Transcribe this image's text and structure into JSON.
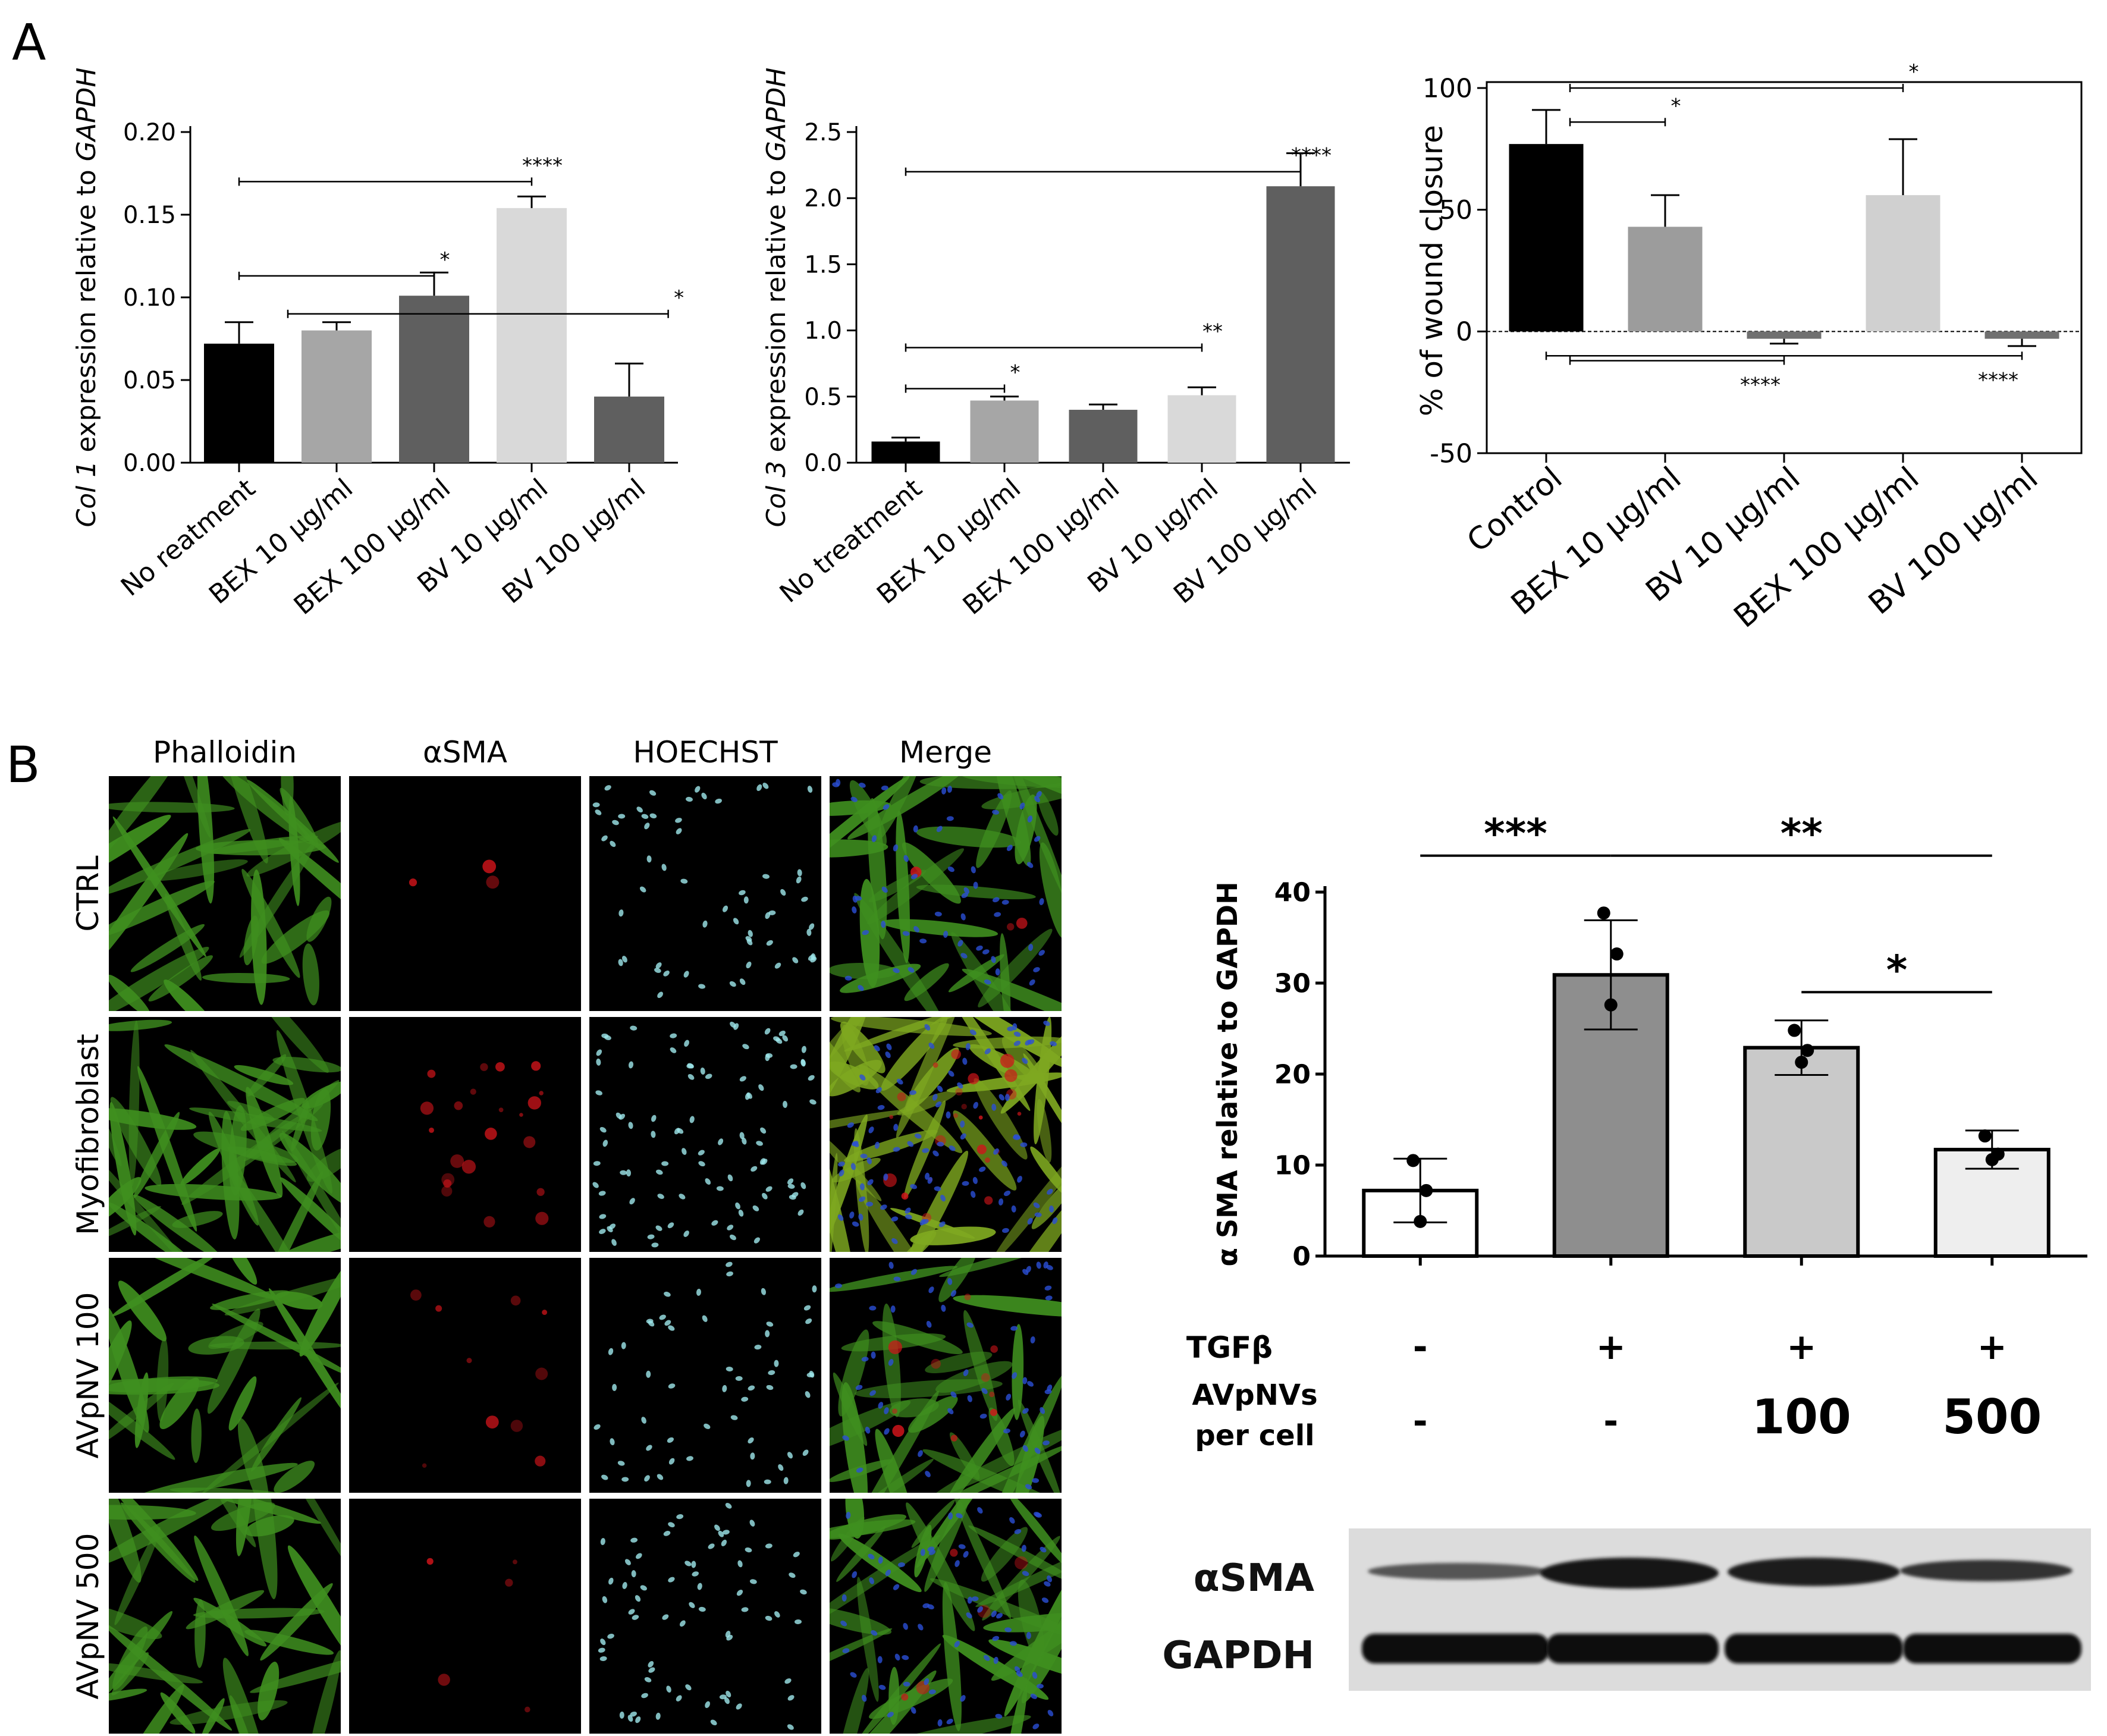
{
  "panel_labels": [
    "A",
    "B"
  ],
  "chart_data": [
    {
      "type": "bar",
      "id": "col1",
      "ylabel_italic": "Col 1",
      "ylabel_rest": " expression relative to ",
      "ylabel_gapdh": "GAPDH",
      "categories": [
        "No reatment",
        "BEX 10 μg/ml",
        "BEX 100 μg/ml",
        "BV 10 μg/ml",
        "BV 100 μg/ml"
      ],
      "values": [
        0.072,
        0.08,
        0.101,
        0.154,
        0.04
      ],
      "errors": [
        0.013,
        0.005,
        0.014,
        0.007,
        0.02
      ],
      "colors": [
        "#000000",
        "#a6a6a6",
        "#5f5f5f",
        "#d9d9d9",
        "#5f5f5f"
      ],
      "ylim": [
        0,
        0.2
      ],
      "yticks": [
        "0.00",
        "0.05",
        "0.10",
        "0.15",
        "0.20"
      ],
      "annotations": [
        {
          "from": 0,
          "to": 3,
          "y": 0.17,
          "label": "****"
        },
        {
          "from": 0,
          "to": 2,
          "y": 0.113,
          "label": "*"
        },
        {
          "from": 0.5,
          "to": 4.4,
          "y": 0.09,
          "label": "*"
        }
      ]
    },
    {
      "type": "bar",
      "id": "col3",
      "ylabel_italic": "Col 3",
      "ylabel_rest": " expression relative to ",
      "ylabel_gapdh": "GAPDH",
      "categories": [
        "No treatment",
        "BEX 10 μg/ml",
        "BEX 100 μg/ml",
        "BV 10 μg/ml",
        "BV 100 μg/ml"
      ],
      "values": [
        0.16,
        0.47,
        0.4,
        0.51,
        2.09
      ],
      "errors": [
        0.03,
        0.03,
        0.04,
        0.06,
        0.25
      ],
      "colors": [
        "#000000",
        "#a6a6a6",
        "#5f5f5f",
        "#d9d9d9",
        "#5f5f5f"
      ],
      "ylim": [
        0,
        2.5
      ],
      "yticks": [
        "0.0",
        "0.5",
        "1.0",
        "1.5",
        "2.0",
        "2.5"
      ],
      "annotations": [
        {
          "from": 0,
          "to": 4,
          "y": 2.2,
          "label": "****"
        },
        {
          "from": 0,
          "to": 3,
          "y": 0.87,
          "label": "**"
        },
        {
          "from": 0,
          "to": 1,
          "y": 0.56,
          "label": "*"
        }
      ]
    },
    {
      "type": "bar",
      "id": "wound",
      "ylabel": "% of wound closure",
      "categories": [
        "Control",
        "BEX 10 μg/ml",
        "BV 10 μg/ml",
        "BEX 100 μg/ml",
        "BV 100 μg/ml"
      ],
      "values": [
        77,
        43,
        -3,
        56,
        -3
      ],
      "errors": [
        14,
        13,
        2,
        23,
        3
      ],
      "colors": [
        "#000000",
        "#9c9c9c",
        "#707070",
        "#d0d0d0",
        "#707070"
      ],
      "ylim": [
        -50,
        100
      ],
      "yticks": [
        "-50",
        "0",
        "50",
        "100"
      ],
      "annotations": [
        {
          "from": 0.2,
          "to": 1,
          "y": 86,
          "label": "*"
        },
        {
          "from": 0.2,
          "to": 3,
          "y": 100,
          "label": "*"
        },
        {
          "from": 0,
          "to": 4,
          "y": -10,
          "label": "****",
          "below": true
        },
        {
          "from": 0.2,
          "to": 2,
          "y": -12,
          "label": "****",
          "below": true
        }
      ]
    },
    {
      "type": "bar",
      "id": "asma",
      "ylabel": "α SMA relative to GAPDH",
      "categories": [
        "",
        "",
        "",
        ""
      ],
      "values": [
        7.2,
        30.9,
        22.9,
        11.7
      ],
      "errors": [
        3.5,
        6,
        3,
        2.1
      ],
      "points": [
        [
          10.5,
          7.2,
          3.8
        ],
        [
          37.7,
          33.2,
          27.6
        ],
        [
          24.8,
          22.6,
          21.3
        ],
        [
          13.2,
          11.2,
          10.6
        ]
      ],
      "colors": [
        "#ffffff",
        "#8e8e8e",
        "#c9c9c9",
        "#eeeeee"
      ],
      "ylim": [
        0,
        40
      ],
      "yticks": [
        "0",
        "10",
        "20",
        "30",
        "40"
      ],
      "annotations": [
        {
          "from": 0,
          "to": 1,
          "y": 44,
          "label": "***"
        },
        {
          "from": 1,
          "to": 3,
          "y": 44,
          "label": "**"
        },
        {
          "from": 2,
          "to": 3,
          "y": 29,
          "label": "*"
        }
      ],
      "conditions": [
        {
          "label": "TGFβ",
          "values": [
            "-",
            "+",
            "+",
            "+"
          ]
        },
        {
          "label_line1": "AVpNVs",
          "label_line2": "per cell",
          "values": [
            "-",
            "-",
            "100",
            "500"
          ]
        }
      ]
    }
  ],
  "microscopy": {
    "columns": [
      "Phalloidin",
      "αSMA",
      "HOECHST",
      "Merge"
    ],
    "rows": [
      "CTRL",
      "Myofibroblast",
      "AVpNV 100",
      "AVpNV 500"
    ]
  },
  "blot": {
    "labels": [
      "αSMA",
      "GAPDH"
    ]
  }
}
